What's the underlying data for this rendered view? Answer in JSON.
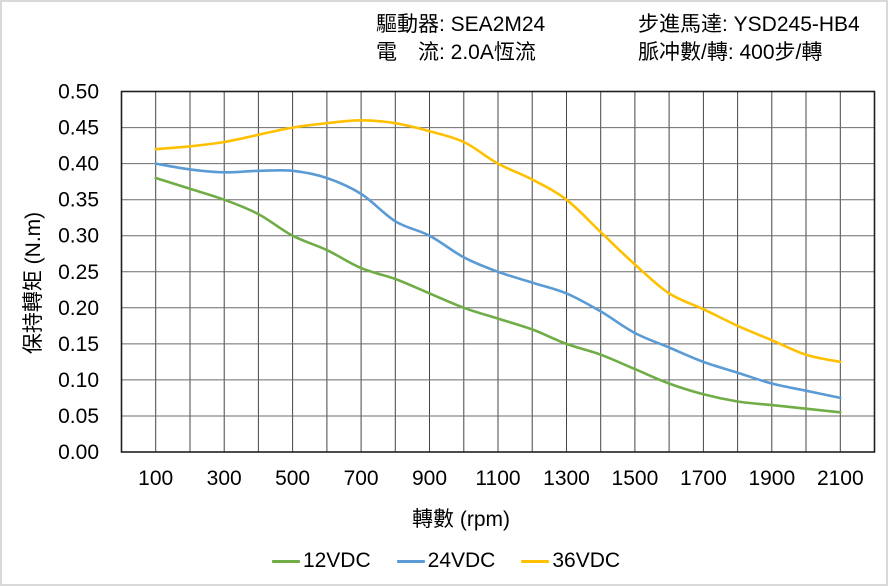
{
  "header": {
    "rows": [
      {
        "left": "驅動器: SEA2M24",
        "right": "步進馬達: YSD245-HB4"
      },
      {
        "left": "電　流: 2.0A恆流",
        "right": "脈冲數/轉: 400步/轉"
      }
    ]
  },
  "chart_data": {
    "type": "line",
    "x": [
      100,
      200,
      300,
      400,
      500,
      600,
      700,
      800,
      900,
      1000,
      1100,
      1200,
      1300,
      1400,
      1500,
      1600,
      1700,
      1800,
      1900,
      2000,
      2100
    ],
    "series": [
      {
        "name": "12VDC",
        "color": "#70AD47",
        "values": [
          0.38,
          0.365,
          0.35,
          0.33,
          0.3,
          0.28,
          0.255,
          0.24,
          0.22,
          0.2,
          0.185,
          0.17,
          0.15,
          0.135,
          0.115,
          0.095,
          0.08,
          0.07,
          0.065,
          0.06,
          0.055
        ]
      },
      {
        "name": "24VDC",
        "color": "#5B9BD5",
        "values": [
          0.4,
          0.392,
          0.388,
          0.39,
          0.39,
          0.38,
          0.358,
          0.32,
          0.3,
          0.27,
          0.25,
          0.235,
          0.22,
          0.195,
          0.165,
          0.145,
          0.125,
          0.11,
          0.095,
          0.085,
          0.075
        ]
      },
      {
        "name": "36VDC",
        "color": "#FFC000",
        "values": [
          0.42,
          0.424,
          0.43,
          0.44,
          0.45,
          0.456,
          0.46,
          0.456,
          0.445,
          0.43,
          0.4,
          0.378,
          0.35,
          0.305,
          0.26,
          0.22,
          0.198,
          0.175,
          0.155,
          0.135,
          0.125
        ]
      }
    ],
    "title": "",
    "xlabel": "轉數 (rpm)",
    "ylabel": "保持轉矩 (N.m)",
    "xlim": [
      0,
      2200
    ],
    "ylim": [
      0,
      0.5
    ],
    "x_tick_labels": [
      100,
      300,
      500,
      700,
      900,
      1100,
      1300,
      1500,
      1700,
      1900,
      2100
    ],
    "y_ticks": [
      0,
      0.05,
      0.1,
      0.15,
      0.2,
      0.25,
      0.3,
      0.35,
      0.4,
      0.45,
      0.5
    ],
    "grid": true,
    "grid_step_x_rpm": 100,
    "grid_step_y": 0.05,
    "legend_position": "bottom",
    "colors": {
      "grid_vertical": "#454545",
      "grid_horizontal": "#6b6b6b",
      "plot_border": "#1f1f1f",
      "text": "#000000"
    }
  }
}
